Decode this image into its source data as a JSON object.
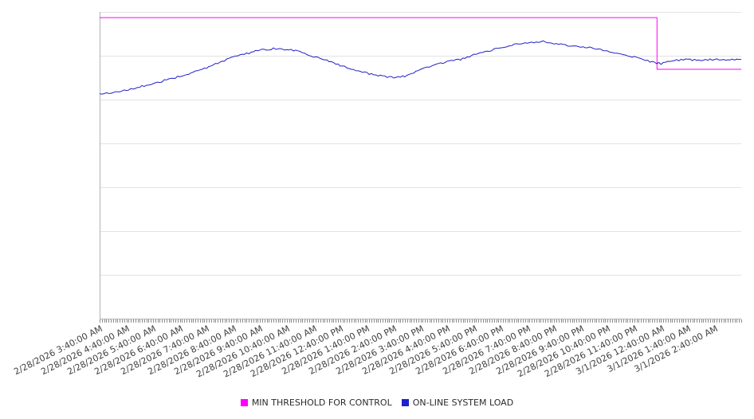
{
  "chart_data": {
    "type": "line",
    "title": "",
    "xlabel": "",
    "ylabel": "",
    "x_axis": {
      "unit": "time",
      "range_hours": [
        0,
        24
      ],
      "major_tick_interval_hours": 1,
      "minor_tick_interval_minutes": 5,
      "tick_labels": [
        "2/28/2026 3:40:00 AM",
        "2/28/2026 4:40:00 AM",
        "2/28/2026 5:40:00 AM",
        "2/28/2026 6:40:00 AM",
        "2/28/2026 7:40:00 AM",
        "2/28/2026 8:40:00 AM",
        "2/28/2026 9:40:00 AM",
        "2/28/2026 10:40:00 AM",
        "2/28/2026 11:40:00 AM",
        "2/28/2026 12:40:00 PM",
        "2/28/2026 1:40:00 PM",
        "2/28/2026 2:40:00 PM",
        "2/28/2026 3:40:00 PM",
        "2/28/2026 4:40:00 PM",
        "2/28/2026 5:40:00 PM",
        "2/28/2026 6:40:00 PM",
        "2/28/2026 7:40:00 PM",
        "2/28/2026 8:40:00 PM",
        "2/28/2026 9:40:00 PM",
        "2/28/2026 10:40:00 PM",
        "2/28/2026 11:40:00 PM",
        "3/1/2026 12:40:00 AM",
        "3/1/2026 1:40:00 AM",
        "3/1/2026 2:40:00 AM"
      ]
    },
    "y_axis": {
      "min": 0,
      "max": 7,
      "gridlines": [
        1,
        2,
        3,
        4,
        5,
        6,
        7
      ],
      "tick_labels_visible": false,
      "note": "no y-axis tick labels shown; values in relative gridline units"
    },
    "series": [
      {
        "name": "MIN THRESHOLD FOR CONTROL",
        "color": "#ff00ff",
        "render": "step",
        "points": [
          [
            0,
            6.87
          ],
          [
            20.85,
            6.87
          ],
          [
            20.85,
            5.69
          ],
          [
            24,
            5.69
          ]
        ]
      },
      {
        "name": "ON-LINE SYSTEM LOAD",
        "color": "#2020cc",
        "render": "noisy-line",
        "noise_amplitude": 0.02,
        "sample_minutes": 5,
        "points": [
          [
            0,
            5.13
          ],
          [
            0.5,
            5.16
          ],
          [
            1,
            5.22
          ],
          [
            1.5,
            5.29
          ],
          [
            2,
            5.36
          ],
          [
            2.5,
            5.45
          ],
          [
            3,
            5.53
          ],
          [
            3.5,
            5.62
          ],
          [
            4,
            5.72
          ],
          [
            4.5,
            5.85
          ],
          [
            5,
            5.97
          ],
          [
            5.5,
            6.05
          ],
          [
            6,
            6.13
          ],
          [
            6.5,
            6.16
          ],
          [
            7,
            6.15
          ],
          [
            7.5,
            6.1
          ],
          [
            8,
            5.98
          ],
          [
            8.5,
            5.89
          ],
          [
            9,
            5.78
          ],
          [
            9.5,
            5.68
          ],
          [
            10,
            5.6
          ],
          [
            10.5,
            5.54
          ],
          [
            11,
            5.5
          ],
          [
            11.5,
            5.54
          ],
          [
            12,
            5.7
          ],
          [
            12.5,
            5.78
          ],
          [
            13,
            5.86
          ],
          [
            13.5,
            5.92
          ],
          [
            14,
            6.02
          ],
          [
            14.5,
            6.1
          ],
          [
            15,
            6.18
          ],
          [
            15.5,
            6.26
          ],
          [
            16,
            6.29
          ],
          [
            16.5,
            6.33
          ],
          [
            17,
            6.28
          ],
          [
            17.5,
            6.24
          ],
          [
            18,
            6.21
          ],
          [
            18.5,
            6.17
          ],
          [
            19,
            6.11
          ],
          [
            19.5,
            6.05
          ],
          [
            20,
            5.97
          ],
          [
            20.5,
            5.88
          ],
          [
            21,
            5.82
          ],
          [
            21.5,
            5.9
          ],
          [
            22,
            5.91
          ],
          [
            22.5,
            5.89
          ],
          [
            23,
            5.92
          ],
          [
            23.5,
            5.9
          ],
          [
            24,
            5.92
          ]
        ]
      }
    ],
    "legend": {
      "position": "bottom-center"
    },
    "style": {
      "grid_color": "#e3e3e3",
      "axis_color": "#b3b3b3",
      "tick_color": "#8c8c8c",
      "label_color": "#404040",
      "background": "#ffffff"
    }
  }
}
